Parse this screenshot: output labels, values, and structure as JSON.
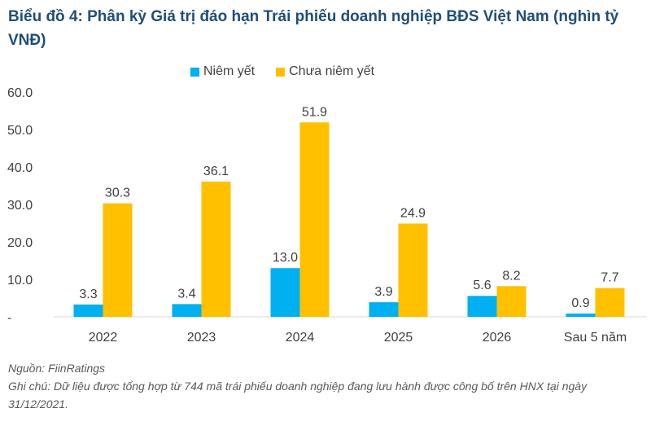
{
  "chart_data": {
    "type": "bar",
    "title": "Biểu đồ 4: Phân kỳ Giá trị đáo hạn Trái phiếu doanh nghiệp BĐS Việt Nam (nghìn tỷ VNĐ)",
    "categories": [
      "2022",
      "2023",
      "2024",
      "2025",
      "2026",
      "Sau 5 năm"
    ],
    "series": [
      {
        "name": "Niêm yết",
        "color": "#00b0f0",
        "values": [
          3.3,
          3.4,
          13.0,
          3.9,
          5.6,
          0.9
        ]
      },
      {
        "name": "Chưa niêm yết",
        "color": "#ffc000",
        "values": [
          30.3,
          36.1,
          51.9,
          24.9,
          8.2,
          7.7
        ]
      }
    ],
    "ylim": [
      0,
      60
    ],
    "yticks": [
      "-",
      "10.0",
      "20.0",
      "30.0",
      "40.0",
      "50.0",
      "60.0"
    ],
    "grid": false,
    "legend_position": "top"
  },
  "source_note": "Nguồn: FiinRatings",
  "footnote": "Ghi chú: Dữ liệu được tổng hợp từ 744 mã trái phiếu doanh nghiệp đang lưu hành được công bố trên HNX tại ngày 31/12/2021."
}
